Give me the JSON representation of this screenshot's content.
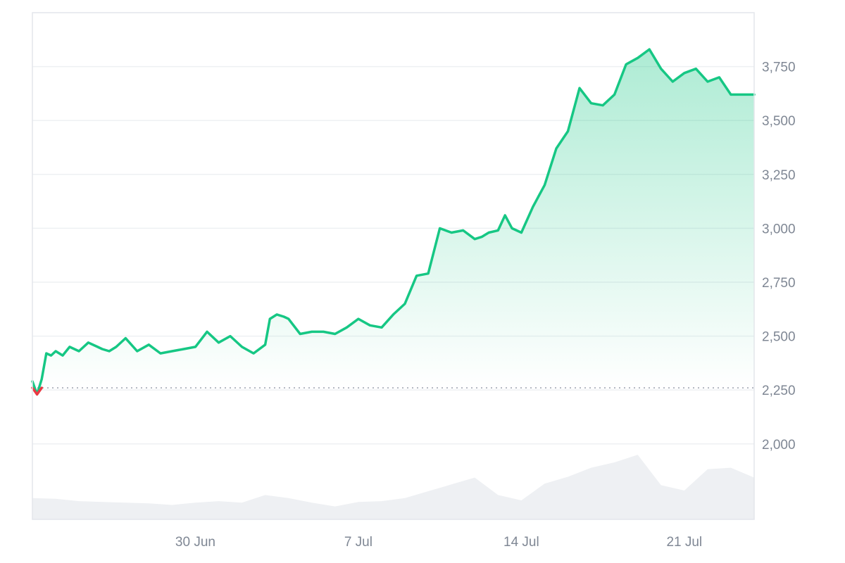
{
  "chart_data": {
    "type": "area",
    "title": "",
    "xlabel": "",
    "ylabel": "",
    "x_ticks": [
      "30 Jun",
      "7 Jul",
      "14 Jul",
      "21 Jul"
    ],
    "y_ticks": [
      2000,
      2250,
      2500,
      2750,
      3000,
      3250,
      3500,
      3750
    ],
    "y_tick_labels": [
      "2,000",
      "2,250",
      "2,500",
      "2,750",
      "3,000",
      "3,250",
      "3,500",
      "3,750"
    ],
    "ylim": [
      1650,
      4000
    ],
    "xlim": [
      "2025-06-23",
      "2025-07-24"
    ],
    "baseline": 2260,
    "grid": true,
    "legend": "none",
    "colors": {
      "line_up": "#16c784",
      "line_down": "#ea3943",
      "area_top": "#16c784",
      "volume": "#eef0f3",
      "baseline": "#9aa1ad"
    },
    "series": [
      {
        "x": [
          0,
          0.2,
          0.4,
          0.6,
          0.8,
          1,
          1.3,
          1.6,
          2,
          2.4,
          2.8,
          3,
          3.3,
          3.6,
          4,
          4.5,
          5,
          5.5,
          6,
          6.5,
          7,
          7.5,
          8,
          8.5,
          9,
          9.5,
          10,
          10.2,
          10.5,
          10.8,
          11,
          11.5,
          12,
          12.5,
          13,
          13.5,
          14,
          14.5,
          15,
          15.5,
          16,
          16.5,
          17,
          17.5,
          18,
          18.5,
          19,
          19.3,
          19.6,
          20,
          20.3,
          20.6,
          21,
          21.5,
          22,
          22.5,
          23,
          23.5,
          24,
          24.5,
          25,
          25.5,
          26,
          26.5,
          27,
          27.5,
          28,
          28.5,
          29,
          29.5,
          30,
          30.5,
          31
        ],
        "values": [
          2290,
          2230,
          2300,
          2420,
          2410,
          2430,
          2410,
          2450,
          2430,
          2470,
          2450,
          2440,
          2430,
          2450,
          2490,
          2430,
          2460,
          2420,
          2430,
          2440,
          2450,
          2520,
          2470,
          2500,
          2450,
          2420,
          2460,
          2580,
          2600,
          2590,
          2580,
          2510,
          2520,
          2520,
          2510,
          2540,
          2580,
          2550,
          2540,
          2600,
          2650,
          2780,
          2790,
          3000,
          2980,
          2990,
          2950,
          2960,
          2980,
          2990,
          3060,
          3000,
          2980,
          3100,
          3200,
          3370,
          3450,
          3650,
          3580,
          3570,
          3620,
          3760,
          3790,
          3830,
          3740,
          3680,
          3720,
          3740,
          3680,
          3700,
          3620,
          3620,
          3620
        ]
      }
    ],
    "volume": {
      "x": [
        0,
        1,
        2,
        3,
        4,
        5,
        6,
        7,
        8,
        9,
        10,
        11,
        12,
        13,
        14,
        15,
        16,
        17,
        18,
        19,
        20,
        21,
        22,
        23,
        24,
        25,
        26,
        27,
        28,
        29,
        30,
        31
      ],
      "values": [
        0.28,
        0.27,
        0.24,
        0.23,
        0.22,
        0.21,
        0.19,
        0.22,
        0.24,
        0.22,
        0.32,
        0.28,
        0.22,
        0.17,
        0.23,
        0.24,
        0.28,
        0.37,
        0.46,
        0.55,
        0.32,
        0.25,
        0.47,
        0.56,
        0.68,
        0.75,
        0.85,
        0.45,
        0.38,
        0.66,
        0.68,
        0.55
      ]
    }
  }
}
